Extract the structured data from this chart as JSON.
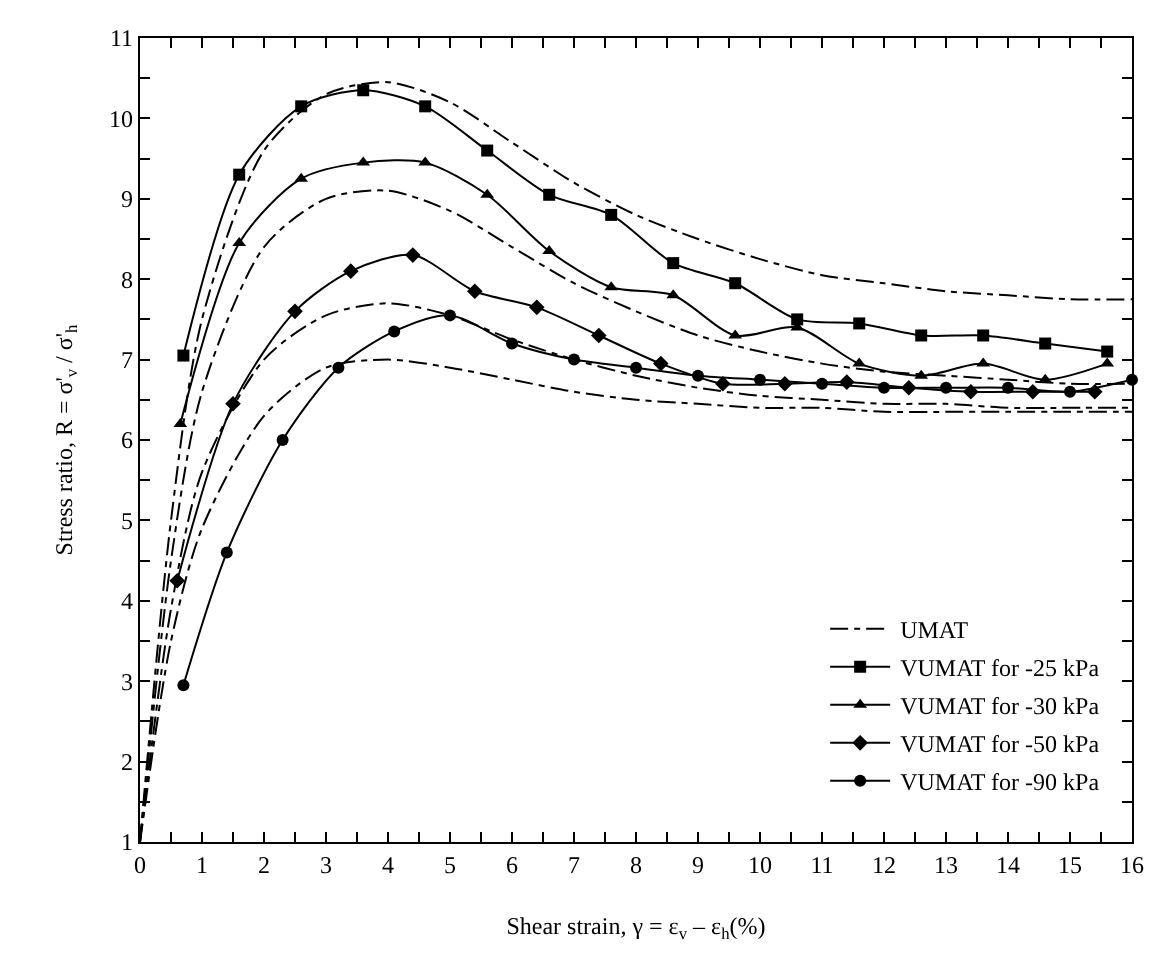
{
  "chart_data": {
    "type": "line",
    "xlabel": "Shear strain, γ = ε$_{v}$ – ε$_{h}$(%)",
    "ylabel": "Stress ratio, R = σ'$_{v}$ / σ'$_{h}$",
    "xlim": [
      0,
      16
    ],
    "ylim": [
      1,
      11
    ],
    "xticks": [
      0,
      {
        "value": 0.5,
        "label": null
      },
      1,
      {
        "value": 1.5,
        "label": null
      },
      2,
      {
        "value": 2.5,
        "label": null
      },
      3,
      {
        "value": 3.5,
        "label": null
      },
      4,
      {
        "value": 4.5,
        "label": null
      },
      5,
      {
        "value": 5.5,
        "label": null
      },
      6,
      {
        "value": 6.5,
        "label": null
      },
      7,
      {
        "value": 7.5,
        "label": null
      },
      8,
      {
        "value": 8.5,
        "label": null
      },
      9,
      {
        "value": 9.5,
        "label": null
      },
      10,
      {
        "value": 10.5,
        "label": null
      },
      11,
      {
        "value": 11.5,
        "label": null
      },
      12,
      {
        "value": 12.5,
        "label": null
      },
      13,
      {
        "value": 13.5,
        "label": null
      },
      14,
      {
        "value": 14.5,
        "label": null
      },
      15,
      {
        "value": 15.5,
        "label": null
      },
      16
    ],
    "yticks": [
      1,
      {
        "value": 1.5,
        "label": null
      },
      2,
      {
        "value": 2.5,
        "label": null
      },
      3,
      {
        "value": 3.5,
        "label": null
      },
      4,
      {
        "value": 4.5,
        "label": null
      },
      5,
      {
        "value": 5.5,
        "label": null
      },
      6,
      {
        "value": 6.5,
        "label": null
      },
      7,
      {
        "value": 7.5,
        "label": null
      },
      8,
      {
        "value": 8.5,
        "label": null
      },
      9,
      {
        "value": 9.5,
        "label": null
      },
      10,
      {
        "value": 10.5,
        "label": null
      },
      11
    ],
    "grid": false,
    "legend": "bottom right",
    "series": [
      {
        "name": "UMAT",
        "color": "#000000",
        "marker": "none",
        "line_style": "dashed",
        "x": [
          0,
          0.5,
          1,
          2,
          3,
          4,
          5,
          6,
          7,
          8,
          9,
          10,
          11,
          12,
          13,
          14,
          15,
          16
        ],
        "values": [
          1,
          5,
          7.5,
          9.6,
          10.3,
          10.45,
          10.2,
          9.7,
          9.2,
          8.8,
          8.5,
          8.25,
          8.05,
          7.95,
          7.85,
          7.8,
          7.75,
          7.75
        ]
      },
      {
        "color": "#000000",
        "marker": "none",
        "line_style": "dashed",
        "x": [
          0,
          0.5,
          1,
          2,
          3,
          4,
          5,
          6,
          7,
          8,
          9,
          10,
          11,
          12,
          13,
          14,
          15,
          16
        ],
        "values": [
          1,
          4.5,
          6.6,
          8.4,
          9,
          9.1,
          8.85,
          8.4,
          7.95,
          7.6,
          7.3,
          7.1,
          6.95,
          6.85,
          6.8,
          6.75,
          6.7,
          6.7
        ]
      },
      {
        "color": "#000000",
        "marker": "none",
        "line_style": "dashed",
        "x": [
          0,
          0.5,
          1,
          2,
          3,
          4,
          5,
          6,
          7,
          8,
          9,
          10,
          11,
          12,
          13,
          14,
          15,
          16
        ],
        "values": [
          1,
          3.9,
          5.6,
          7,
          7.55,
          7.7,
          7.55,
          7.25,
          7,
          6.8,
          6.65,
          6.55,
          6.5,
          6.45,
          6.45,
          6.4,
          6.4,
          6.4
        ]
      },
      {
        "color": "#000000",
        "marker": "none",
        "line_style": "dashed",
        "x": [
          0,
          0.5,
          1,
          2,
          3,
          4,
          5,
          6,
          7,
          8,
          9,
          10,
          11,
          12,
          13,
          14,
          15,
          16
        ],
        "values": [
          1,
          3.5,
          4.9,
          6.3,
          6.9,
          7,
          6.9,
          6.75,
          6.6,
          6.5,
          6.45,
          6.4,
          6.4,
          6.35,
          6.35,
          6.35,
          6.35,
          6.35
        ]
      },
      {
        "name": "VUMAT for -25 kPa",
        "color": "#000000",
        "marker": "square",
        "line_style": "solid",
        "x": [
          0.7,
          1.6,
          2.6,
          3.6,
          4.6,
          5.6,
          6.6,
          7.6,
          8.6,
          9.6,
          10.6,
          11.6,
          12.6,
          13.6,
          14.6,
          15.6
        ],
        "values": [
          7.05,
          9.3,
          10.15,
          10.35,
          10.15,
          9.6,
          9.05,
          8.8,
          8.2,
          7.95,
          7.5,
          7.45,
          7.3,
          7.3,
          7.2,
          7.1
        ]
      },
      {
        "name": "VUMAT for -30 kPa",
        "color": "#000000",
        "marker": "triangle",
        "line_style": "solid",
        "x": [
          0.65,
          1.6,
          2.6,
          3.6,
          4.6,
          5.6,
          6.6,
          7.6,
          8.6,
          9.6,
          10.6,
          11.6,
          12.6,
          13.6,
          14.6,
          15.6
        ],
        "values": [
          6.2,
          8.45,
          9.25,
          9.45,
          9.45,
          9.05,
          8.35,
          7.9,
          7.8,
          7.3,
          7.4,
          6.95,
          6.8,
          6.95,
          6.75,
          6.95
        ]
      },
      {
        "name": "VUMAT for -50 kPa",
        "color": "#000000",
        "marker": "diamond",
        "line_style": "solid",
        "x": [
          0.6,
          1.5,
          2.5,
          3.4,
          4.4,
          5.4,
          6.4,
          7.4,
          8.4,
          9.4,
          10.4,
          11.4,
          12.4,
          13.4,
          14.4,
          15.4
        ],
        "values": [
          4.25,
          6.45,
          7.6,
          8.1,
          8.3,
          7.85,
          7.65,
          7.3,
          6.95,
          6.7,
          6.7,
          6.72,
          6.65,
          6.6,
          6.6,
          6.6
        ]
      },
      {
        "name": "VUMAT for -90 kPa",
        "color": "#000000",
        "marker": "circle",
        "line_style": "solid",
        "x": [
          0.7,
          1.4,
          2.3,
          3.2,
          4.1,
          5,
          6,
          7,
          8,
          9,
          10,
          11,
          12,
          13,
          14,
          15,
          16
        ],
        "values": [
          2.95,
          4.6,
          6,
          6.9,
          7.35,
          7.55,
          7.2,
          7,
          6.9,
          6.8,
          6.75,
          6.7,
          6.65,
          6.65,
          6.65,
          6.6,
          6.75
        ]
      }
    ]
  }
}
